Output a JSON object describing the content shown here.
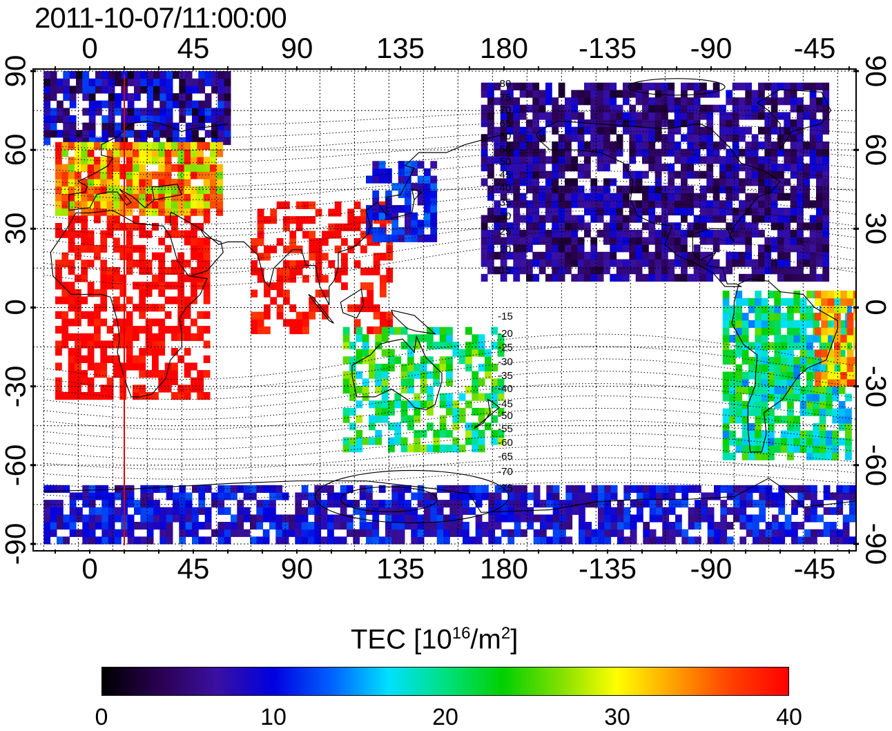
{
  "title": "2011-10-07/11:00:00",
  "x_ticks": [
    "0",
    "45",
    "90",
    "135",
    "180",
    "-135",
    "-90",
    "-45"
  ],
  "y_ticks_left": [
    "90",
    "60",
    "30",
    "0",
    "-30",
    "-60",
    "-90"
  ],
  "y_ticks_right": [
    "90",
    "60",
    "30",
    "0",
    "-30",
    "-60",
    "-90"
  ],
  "contour_labels": [
    "80",
    "75",
    "70",
    "65",
    "60",
    "55",
    "50",
    "45",
    "40",
    "35",
    "30",
    "25",
    "20",
    "15",
    "-15",
    "-20",
    "-25",
    "-30",
    "-35",
    "-40",
    "-45",
    "-50",
    "-55",
    "-60",
    "-65",
    "-70",
    "-75"
  ],
  "colorbar": {
    "title_main": "TEC  [10",
    "title_sup1": "16",
    "title_mid": "/m",
    "title_sup2": "2",
    "title_end": "]",
    "ticks": [
      "0",
      "10",
      "20",
      "30",
      "40"
    ],
    "colormap": [
      "#000000",
      "#2a0050",
      "#3a10a0",
      "#0000e0",
      "#0060ff",
      "#00e0ff",
      "#00e080",
      "#00d000",
      "#80e000",
      "#ffff00",
      "#ffa000",
      "#ff4000",
      "#ff0000"
    ]
  },
  "map_data": {
    "projection": "equirectangular",
    "lon_range": [
      -20,
      340
    ],
    "lat_range": [
      -90,
      90
    ],
    "grid_step": 15,
    "meridian_marker_lon": 15,
    "meridian_marker_color": "#e00000",
    "tec_regions": [
      {
        "name": "europe",
        "value": 33
      },
      {
        "name": "africa",
        "value": 40
      },
      {
        "name": "south-asia",
        "value": 40
      },
      {
        "name": "east-asia",
        "value": 10
      },
      {
        "name": "australia",
        "value": 22
      },
      {
        "name": "north-america",
        "value": 6
      },
      {
        "name": "south-america",
        "value": 20
      },
      {
        "name": "brazil-east",
        "value": 33
      },
      {
        "name": "antarctica",
        "value": 9
      },
      {
        "name": "arctic",
        "value": 7
      }
    ]
  }
}
